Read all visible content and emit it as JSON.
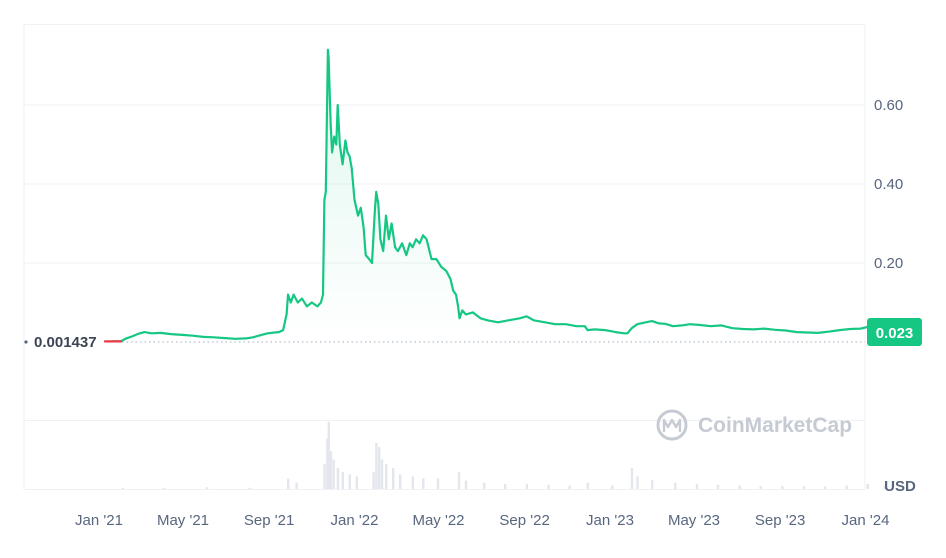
{
  "chart_data": {
    "type": "area",
    "x_labels": [
      "Jan '21",
      "May '21",
      "Sep '21",
      "Jan '22",
      "May '22",
      "Sep '22",
      "Jan '23",
      "May '23",
      "Sep '23",
      "Jan '24"
    ],
    "y_ticks": [
      "0.20",
      "0.40",
      "0.60"
    ],
    "y_tick_values": [
      0.2,
      0.4,
      0.6
    ],
    "ylim": [
      -0.2,
      0.8
    ],
    "unit": "USD",
    "start_value_label": "0.001437",
    "start_value": 0.001437,
    "current_value_label": "0.023",
    "current_value": 0.023,
    "grid": true,
    "line_color": "#16c784",
    "start_segment_color": "#ea3943",
    "badge_color": "#16c784",
    "watermark": "CoinMarketCap",
    "series": [
      {
        "points": [
          [
            "2021-01-01",
            0.0014
          ],
          [
            "2021-01-12",
            0.0016
          ],
          [
            "2021-01-20",
            0.009
          ],
          [
            "2021-01-28",
            0.014
          ],
          [
            "2021-02-05",
            0.02
          ],
          [
            "2021-02-15",
            0.025
          ],
          [
            "2021-02-25",
            0.022
          ],
          [
            "2021-03-10",
            0.023
          ],
          [
            "2021-03-25",
            0.02
          ],
          [
            "2021-04-10",
            0.018
          ],
          [
            "2021-04-25",
            0.016
          ],
          [
            "2021-05-10",
            0.013
          ],
          [
            "2021-05-25",
            0.012
          ],
          [
            "2021-06-10",
            0.01
          ],
          [
            "2021-06-25",
            0.008
          ],
          [
            "2021-07-10",
            0.009
          ],
          [
            "2021-07-20",
            0.012
          ],
          [
            "2021-08-01",
            0.018
          ],
          [
            "2021-08-10",
            0.022
          ],
          [
            "2021-08-20",
            0.024
          ],
          [
            "2021-08-26",
            0.025
          ],
          [
            "2021-09-01",
            0.03
          ],
          [
            "2021-09-06",
            0.07
          ],
          [
            "2021-09-08",
            0.12
          ],
          [
            "2021-09-12",
            0.1
          ],
          [
            "2021-09-16",
            0.12
          ],
          [
            "2021-09-22",
            0.1
          ],
          [
            "2021-09-28",
            0.11
          ],
          [
            "2021-10-05",
            0.09
          ],
          [
            "2021-10-12",
            0.1
          ],
          [
            "2021-10-20",
            0.09
          ],
          [
            "2021-10-25",
            0.1
          ],
          [
            "2021-10-28",
            0.12
          ],
          [
            "2021-10-30",
            0.36
          ],
          [
            "2021-11-01",
            0.38
          ],
          [
            "2021-11-03",
            0.62
          ],
          [
            "2021-11-04",
            0.74
          ],
          [
            "2021-11-05",
            0.72
          ],
          [
            "2021-11-08",
            0.55
          ],
          [
            "2021-11-10",
            0.48
          ],
          [
            "2021-11-13",
            0.52
          ],
          [
            "2021-11-16",
            0.5
          ],
          [
            "2021-11-18",
            0.6
          ],
          [
            "2021-11-21",
            0.5
          ],
          [
            "2021-11-25",
            0.45
          ],
          [
            "2021-11-29",
            0.51
          ],
          [
            "2021-12-02",
            0.48
          ],
          [
            "2021-12-05",
            0.47
          ],
          [
            "2021-12-08",
            0.44
          ],
          [
            "2021-12-12",
            0.36
          ],
          [
            "2021-12-17",
            0.32
          ],
          [
            "2021-12-21",
            0.34
          ],
          [
            "2021-12-25",
            0.29
          ],
          [
            "2021-12-28",
            0.22
          ],
          [
            "2022-01-02",
            0.21
          ],
          [
            "2022-01-06",
            0.2
          ],
          [
            "2022-01-10",
            0.33
          ],
          [
            "2022-01-12",
            0.38
          ],
          [
            "2022-01-15",
            0.35
          ],
          [
            "2022-01-18",
            0.26
          ],
          [
            "2022-01-22",
            0.23
          ],
          [
            "2022-01-26",
            0.32
          ],
          [
            "2022-01-30",
            0.26
          ],
          [
            "2022-02-03",
            0.3
          ],
          [
            "2022-02-08",
            0.24
          ],
          [
            "2022-02-12",
            0.23
          ],
          [
            "2022-02-18",
            0.25
          ],
          [
            "2022-02-24",
            0.22
          ],
          [
            "2022-03-01",
            0.25
          ],
          [
            "2022-03-05",
            0.24
          ],
          [
            "2022-03-10",
            0.26
          ],
          [
            "2022-03-15",
            0.25
          ],
          [
            "2022-03-20",
            0.27
          ],
          [
            "2022-03-25",
            0.26
          ],
          [
            "2022-04-01",
            0.21
          ],
          [
            "2022-04-08",
            0.21
          ],
          [
            "2022-04-15",
            0.19
          ],
          [
            "2022-04-22",
            0.18
          ],
          [
            "2022-04-28",
            0.16
          ],
          [
            "2022-05-02",
            0.13
          ],
          [
            "2022-05-06",
            0.12
          ],
          [
            "2022-05-09",
            0.09
          ],
          [
            "2022-05-11",
            0.06
          ],
          [
            "2022-05-15",
            0.08
          ],
          [
            "2022-05-20",
            0.07
          ],
          [
            "2022-05-30",
            0.075
          ],
          [
            "2022-06-10",
            0.06
          ],
          [
            "2022-06-20",
            0.055
          ],
          [
            "2022-07-05",
            0.05
          ],
          [
            "2022-07-20",
            0.055
          ],
          [
            "2022-08-05",
            0.06
          ],
          [
            "2022-08-15",
            0.065
          ],
          [
            "2022-08-25",
            0.055
          ],
          [
            "2022-09-10",
            0.05
          ],
          [
            "2022-09-25",
            0.045
          ],
          [
            "2022-10-10",
            0.045
          ],
          [
            "2022-10-25",
            0.04
          ],
          [
            "2022-11-06",
            0.04
          ],
          [
            "2022-11-10",
            0.03
          ],
          [
            "2022-11-20",
            0.032
          ],
          [
            "2022-12-05",
            0.03
          ],
          [
            "2022-12-20",
            0.025
          ],
          [
            "2023-01-01",
            0.022
          ],
          [
            "2023-01-06",
            0.022
          ],
          [
            "2023-01-12",
            0.035
          ],
          [
            "2023-01-20",
            0.045
          ],
          [
            "2023-02-01",
            0.05
          ],
          [
            "2023-02-10",
            0.053
          ],
          [
            "2023-02-20",
            0.047
          ],
          [
            "2023-03-01",
            0.046
          ],
          [
            "2023-03-12",
            0.04
          ],
          [
            "2023-03-25",
            0.042
          ],
          [
            "2023-04-05",
            0.045
          ],
          [
            "2023-04-20",
            0.043
          ],
          [
            "2023-05-05",
            0.04
          ],
          [
            "2023-05-20",
            0.042
          ],
          [
            "2023-06-05",
            0.035
          ],
          [
            "2023-06-20",
            0.033
          ],
          [
            "2023-07-05",
            0.032
          ],
          [
            "2023-07-20",
            0.034
          ],
          [
            "2023-08-05",
            0.031
          ],
          [
            "2023-08-20",
            0.029
          ],
          [
            "2023-09-05",
            0.025
          ],
          [
            "2023-09-20",
            0.024
          ],
          [
            "2023-10-05",
            0.023
          ],
          [
            "2023-10-20",
            0.026
          ],
          [
            "2023-11-05",
            0.03
          ],
          [
            "2023-11-20",
            0.033
          ],
          [
            "2023-12-05",
            0.034
          ],
          [
            "2023-12-15",
            0.038
          ],
          [
            "2023-12-25",
            0.032
          ],
          [
            "2024-01-05",
            0.03
          ],
          [
            "2024-01-10",
            0.023
          ]
        ]
      }
    ],
    "volume": [
      [
        "2021-01-15",
        0.3
      ],
      [
        "2021-03-15",
        0.3
      ],
      [
        "2021-05-15",
        0.4
      ],
      [
        "2021-07-15",
        0.3
      ],
      [
        "2021-09-08",
        2.5
      ],
      [
        "2021-09-20",
        1.5
      ],
      [
        "2021-10-30",
        6
      ],
      [
        "2021-11-03",
        12
      ],
      [
        "2021-11-05",
        16
      ],
      [
        "2021-11-08",
        9
      ],
      [
        "2021-11-12",
        7
      ],
      [
        "2021-11-18",
        5
      ],
      [
        "2021-11-25",
        4
      ],
      [
        "2021-12-05",
        3.5
      ],
      [
        "2021-12-15",
        3
      ],
      [
        "2022-01-08",
        4
      ],
      [
        "2022-01-12",
        11
      ],
      [
        "2022-01-16",
        10
      ],
      [
        "2022-01-20",
        7
      ],
      [
        "2022-01-26",
        6
      ],
      [
        "2022-02-05",
        5
      ],
      [
        "2022-02-15",
        3.5
      ],
      [
        "2022-03-05",
        3
      ],
      [
        "2022-03-20",
        2.5
      ],
      [
        "2022-04-10",
        2.5
      ],
      [
        "2022-05-10",
        4
      ],
      [
        "2022-05-20",
        2
      ],
      [
        "2022-06-15",
        1.5
      ],
      [
        "2022-07-15",
        1.2
      ],
      [
        "2022-08-15",
        1.2
      ],
      [
        "2022-09-15",
        1
      ],
      [
        "2022-10-15",
        0.8
      ],
      [
        "2022-11-10",
        1.5
      ],
      [
        "2022-12-15",
        0.8
      ],
      [
        "2023-01-12",
        5
      ],
      [
        "2023-01-20",
        3
      ],
      [
        "2023-02-10",
        2.2
      ],
      [
        "2023-03-15",
        1.5
      ],
      [
        "2023-04-15",
        1.2
      ],
      [
        "2023-05-15",
        1
      ],
      [
        "2023-06-15",
        0.8
      ],
      [
        "2023-07-15",
        0.7
      ],
      [
        "2023-08-15",
        0.7
      ],
      [
        "2023-09-15",
        0.6
      ],
      [
        "2023-10-15",
        0.6
      ],
      [
        "2023-11-15",
        0.8
      ],
      [
        "2023-12-15",
        1.2
      ],
      [
        "2024-01-08",
        0.8
      ]
    ]
  }
}
